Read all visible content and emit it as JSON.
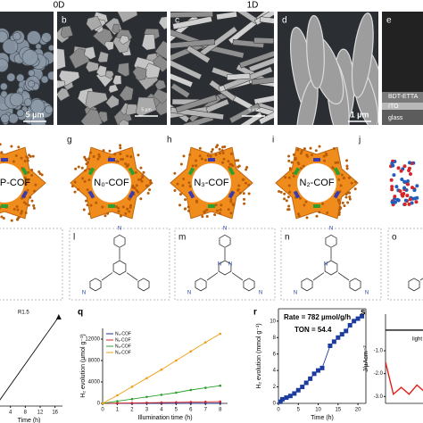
{
  "header": {
    "left": "0D",
    "right": "1D"
  },
  "sem": [
    {
      "scale": "5 µm"
    },
    {
      "label": "b",
      "scale": "5 µm"
    },
    {
      "label": "c",
      "scale": "5 µm"
    },
    {
      "label": "d",
      "scale": "1 µm"
    },
    {
      "label": "e",
      "layers": [
        "BDT-ETTA",
        "ITO",
        "glass"
      ]
    }
  ],
  "cofs": [
    {
      "name": "P-COF"
    },
    {
      "label": "g",
      "name": "N₀-COF"
    },
    {
      "label": "h",
      "name": "N₃-COF"
    },
    {
      "label": "i",
      "name": "N₂-COF"
    },
    {
      "label": "j"
    }
  ],
  "monomers": [
    {
      "label": "l",
      "atoms": [
        "N",
        "N"
      ]
    },
    {
      "label": "m",
      "atoms": [
        "N",
        "N",
        "N",
        "N",
        "N"
      ]
    },
    {
      "label": "n",
      "atoms": [
        "N",
        "N",
        "N",
        "N"
      ]
    },
    {
      "label": "o"
    }
  ],
  "chart_data": [
    {
      "type": "line",
      "annotation": "R1.5",
      "xlabel": "Time (h)",
      "x": [
        0,
        17
      ],
      "xlim": [
        0,
        18
      ],
      "xticks": [
        4,
        8,
        12,
        16
      ],
      "ylim": [
        0,
        1.05
      ],
      "series": [
        {
          "color": "#111111",
          "marker": "triangle",
          "values": [
            0,
            1
          ]
        }
      ]
    },
    {
      "type": "line",
      "label": "q",
      "xlabel": "Illumination time (h)",
      "ylabel": "H₂ evolution (µmol g⁻¹)",
      "x": [
        0,
        1,
        2,
        3,
        4,
        5,
        6,
        7,
        8
      ],
      "xlim": [
        0,
        8.5
      ],
      "xticks": [
        0,
        1,
        2,
        3,
        4,
        5,
        6,
        7,
        8
      ],
      "ylim": [
        0,
        14000
      ],
      "yticks": [
        0,
        4000,
        8000,
        12000
      ],
      "series": [
        {
          "name": "N₀-COF",
          "color": "#1f2f8f",
          "marker": "circle",
          "values": [
            0,
            5,
            10,
            15,
            20,
            25,
            30,
            35,
            40
          ]
        },
        {
          "name": "N₁-COF",
          "color": "#d62728",
          "marker": "circle",
          "values": [
            0,
            40,
            80,
            120,
            160,
            200,
            240,
            280,
            320
          ]
        },
        {
          "name": "N₂-COF",
          "color": "#2ca02c",
          "marker": "circle",
          "values": [
            0,
            400,
            800,
            1200,
            1600,
            2000,
            2500,
            2900,
            3300
          ]
        },
        {
          "name": "N₃-COF",
          "color": "#f39c12",
          "marker": "circle",
          "values": [
            0,
            1500,
            3100,
            4700,
            6300,
            8000,
            9700,
            11400,
            13000
          ]
        }
      ]
    },
    {
      "type": "line",
      "label": "r",
      "xlabel": "Time (h)",
      "ylabel": "H₂ evolution (mmol g⁻¹)",
      "annotations": [
        "Rate = 782 µmol/g/h",
        "TON = 54.4"
      ],
      "x": [
        0.5,
        1,
        2,
        3,
        4,
        5,
        6,
        7,
        8,
        9,
        10,
        11,
        13,
        14,
        15,
        16,
        17,
        18,
        19,
        20,
        21
      ],
      "xlim": [
        0,
        22
      ],
      "xticks": [
        0,
        5,
        10,
        15,
        20
      ],
      "ylim": [
        0,
        11.5
      ],
      "yticks": [
        0,
        2,
        4,
        6,
        8,
        10
      ],
      "series": [
        {
          "color": "#1c3d9e",
          "marker": "square",
          "values": [
            0.2,
            0.5,
            0.7,
            0.9,
            1.2,
            1.6,
            2.0,
            2.5,
            3.0,
            3.6,
            4.0,
            4.3,
            7.0,
            7.5,
            8.0,
            8.4,
            8.8,
            9.5,
            10.0,
            10.3,
            10.6
          ]
        }
      ]
    },
    {
      "type": "line",
      "label": "s",
      "ylabel": "J/µAcm⁻²",
      "annotation": "light o",
      "x": [
        0,
        1,
        2,
        3,
        4,
        5,
        6,
        7,
        8,
        9
      ],
      "xlim": [
        0,
        10
      ],
      "ylim": [
        -3.3,
        0.6
      ],
      "yticks": [
        {
          "value": -1,
          "label": "-1.0"
        },
        {
          "value": -2,
          "label": "-2.0"
        },
        {
          "value": -3,
          "label": "-3.0"
        }
      ],
      "series": [
        {
          "color": "#111111",
          "marker": "none",
          "values": [
            -0.1,
            -0.1,
            -0.1,
            -0.1,
            -0.1,
            -0.1,
            -0.1,
            -0.1,
            -0.1,
            -0.1
          ]
        },
        {
          "color": "#e0201b",
          "marker": "none",
          "values": [
            -1.5,
            -2.9,
            -2.6,
            -2.9,
            -2.5,
            -2.8,
            -2.4,
            -2.7,
            -2.3,
            -2.6
          ]
        }
      ]
    }
  ]
}
